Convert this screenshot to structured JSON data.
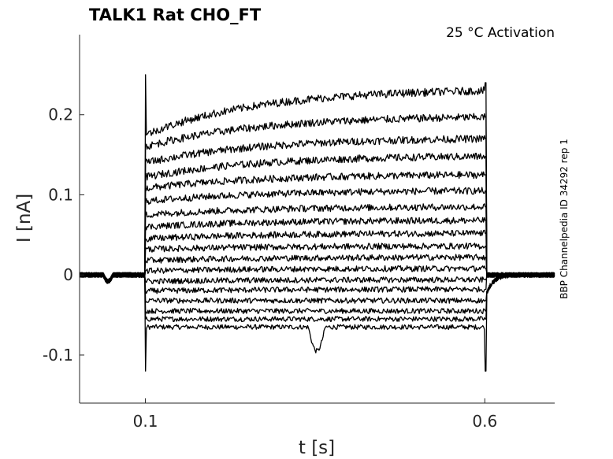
{
  "chart_data": {
    "type": "line",
    "title": "TALK1  Rat  CHO_FT",
    "subtitle": "25 °C  Activation",
    "side_label": "BBP Channelpedia ID 34292 rep 1",
    "xlabel": "t [s]",
    "ylabel": "I [nA]",
    "xlim": [
      0.003,
      0.703
    ],
    "ylim": [
      -0.16,
      0.3
    ],
    "x_ticks": [
      0.1,
      0.6
    ],
    "x_tick_labels": [
      "0.1",
      "0.6"
    ],
    "y_ticks": [
      -0.1,
      0,
      0.1,
      0.2
    ],
    "y_tick_labels": [
      "-0.1",
      "0",
      "0.1",
      "0.2"
    ],
    "grid": false,
    "legend": "none",
    "line_color": "#000000",
    "step_on": 0.1,
    "step_off": 0.6,
    "series": [
      {
        "start": -0.065,
        "end": -0.065
      },
      {
        "start": -0.055,
        "end": -0.055
      },
      {
        "start": -0.045,
        "end": -0.045
      },
      {
        "start": -0.032,
        "end": -0.032
      },
      {
        "start": -0.02,
        "end": -0.018
      },
      {
        "start": -0.008,
        "end": -0.006
      },
      {
        "start": 0.005,
        "end": 0.008
      },
      {
        "start": 0.018,
        "end": 0.022
      },
      {
        "start": 0.032,
        "end": 0.036
      },
      {
        "start": 0.045,
        "end": 0.052
      },
      {
        "start": 0.06,
        "end": 0.068
      },
      {
        "start": 0.075,
        "end": 0.085
      },
      {
        "start": 0.092,
        "end": 0.105
      },
      {
        "start": 0.108,
        "end": 0.125
      },
      {
        "start": 0.122,
        "end": 0.148
      },
      {
        "start": 0.14,
        "end": 0.17
      },
      {
        "start": 0.16,
        "end": 0.197
      },
      {
        "start": 0.175,
        "end": 0.23
      }
    ]
  }
}
